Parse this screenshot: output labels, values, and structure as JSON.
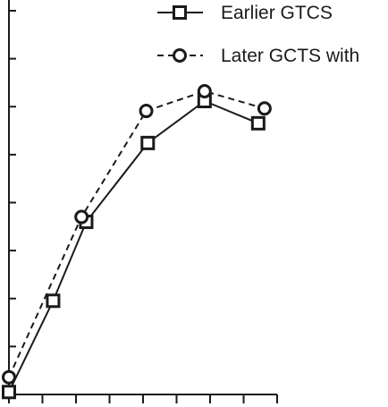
{
  "chart_data": {
    "type": "line",
    "title": "",
    "xlabel": "",
    "ylabel": "",
    "x": [
      0,
      1.4,
      2.45,
      4.4,
      6.2,
      7.9
    ],
    "xlim": [
      0,
      8.5
    ],
    "ylim": [
      0,
      8
    ],
    "x_tick_count": 9,
    "y_tick_count": 9,
    "grid": false,
    "legend_position": "top-right",
    "series": [
      {
        "name": "Earlier GTCS",
        "marker": "square",
        "line_style": "solid",
        "color": "#1a1a1a",
        "x": [
          0,
          1.4,
          2.45,
          4.4,
          6.2,
          7.9
        ],
        "values": [
          0.05,
          1.9,
          3.5,
          5.1,
          5.95,
          5.5
        ]
      },
      {
        "name": "Later GCTS with",
        "marker": "circle",
        "line_style": "dashed",
        "color": "#1a1a1a",
        "x": [
          0,
          2.3,
          4.35,
          6.2,
          8.1
        ],
        "values": [
          0.35,
          3.6,
          5.75,
          6.15,
          5.8
        ]
      }
    ]
  }
}
